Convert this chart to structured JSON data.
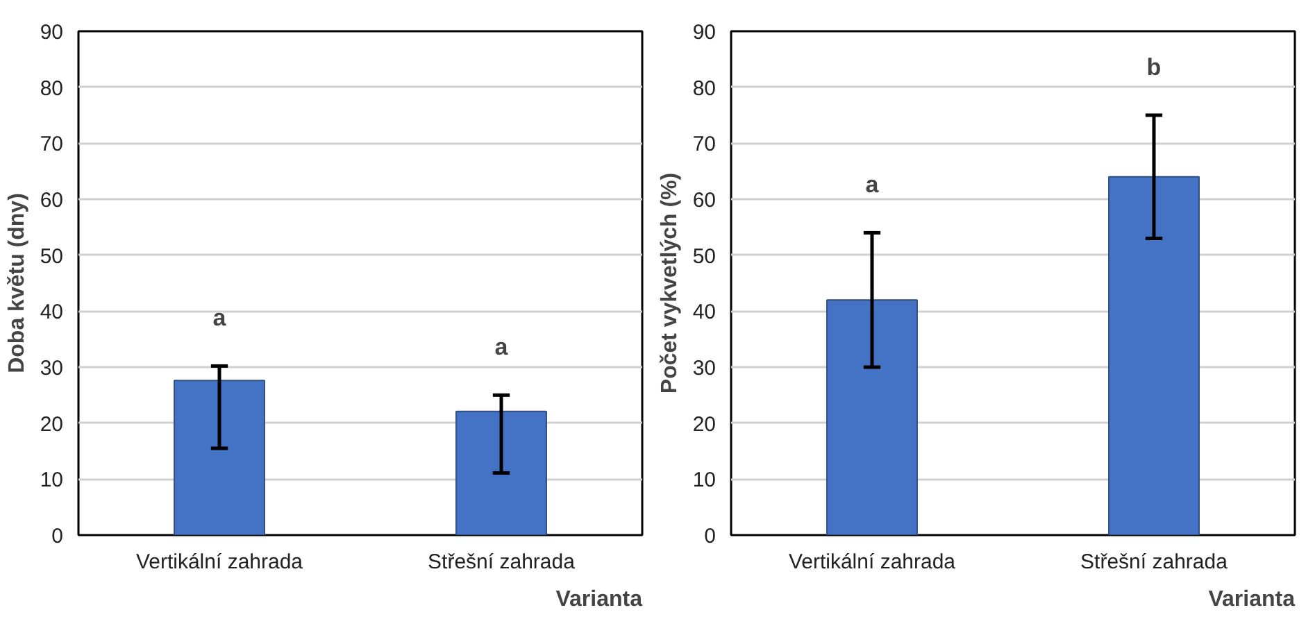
{
  "chart_data": [
    {
      "type": "bar",
      "categories": [
        "Vertikální zahrada",
        "Střešní zahrada"
      ],
      "values": [
        27.6,
        22.1
      ],
      "color": "#4472c4",
      "errors": [
        [
          15.5,
          30.2
        ],
        [
          11.1,
          25.0
        ]
      ],
      "ylabel": "Doba květu (dny)",
      "xlabel": "Varianta",
      "ylim": [
        0,
        90
      ],
      "yticks": [
        0,
        10,
        20,
        30,
        40,
        50,
        60,
        70,
        80,
        90
      ],
      "grid": "y",
      "annotations": [
        "a",
        "a"
      ]
    },
    {
      "type": "bar",
      "categories": [
        "Vertikální zahrada",
        "Střešní zahrada"
      ],
      "values": [
        42,
        64
      ],
      "color": "#4472c4",
      "errors": [
        [
          30,
          54
        ],
        [
          53,
          75
        ]
      ],
      "ylabel": "Počet vykvetlých (%)",
      "xlabel": "Varianta",
      "ylim": [
        0,
        90
      ],
      "yticks": [
        0,
        10,
        20,
        30,
        40,
        50,
        60,
        70,
        80,
        90
      ],
      "grid": "y",
      "annotations": [
        "a",
        "b"
      ]
    }
  ]
}
